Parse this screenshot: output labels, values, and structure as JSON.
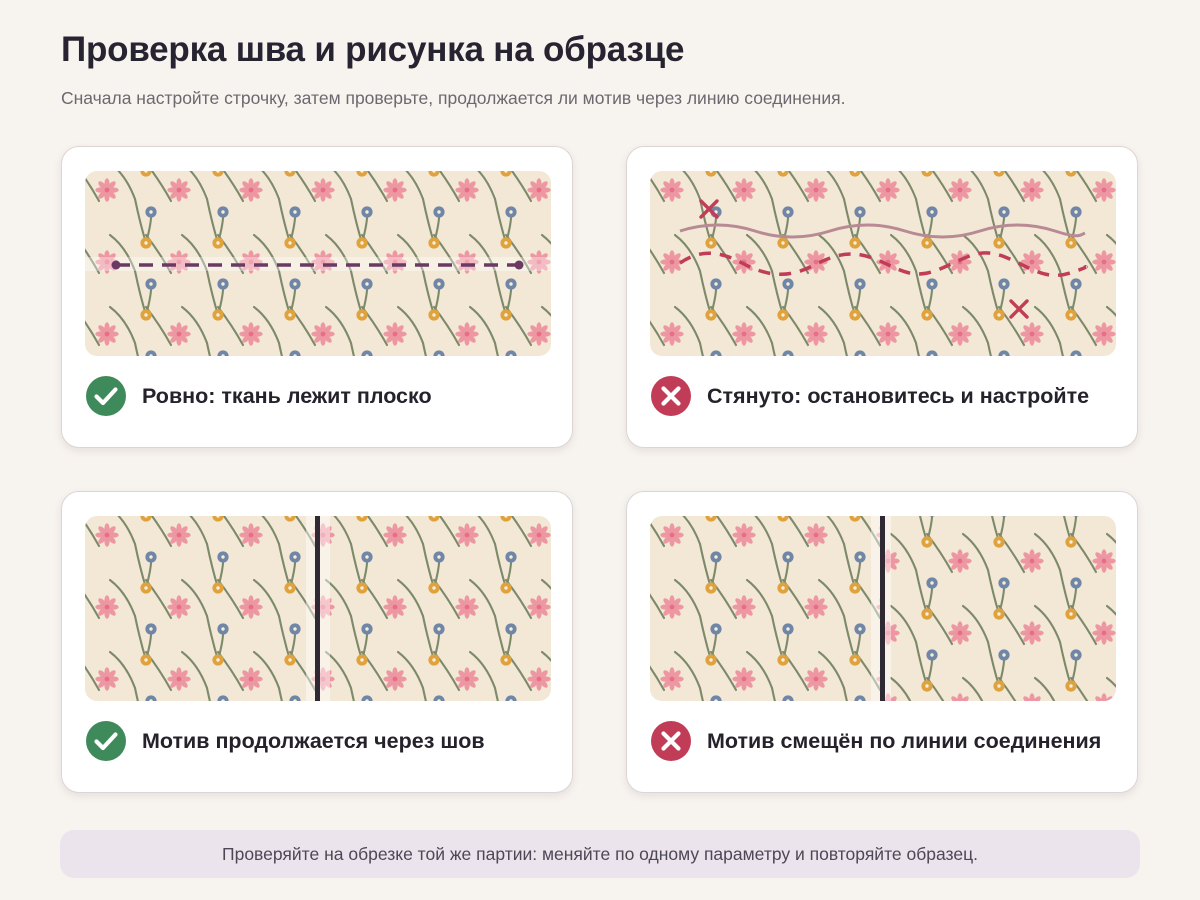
{
  "header": {
    "title": "Проверка шва и рисунка на образце",
    "subtitle": "Сначала настройте строчку, затем проверьте, продолжается ли мотив через линию соединения."
  },
  "cards": [
    {
      "id": "flat",
      "status": "ok",
      "label": "Ровно: ткань лежит плоско"
    },
    {
      "id": "puckered",
      "status": "bad",
      "label": "Стянуто: остановитесь и настройте"
    },
    {
      "id": "matched",
      "status": "ok",
      "label": "Мотив продолжается через шов"
    },
    {
      "id": "shifted",
      "status": "bad",
      "label": "Мотив смещён по линии соединения"
    }
  ],
  "footer": {
    "note": "Проверяйте на обрезке той же партии: меняйте по одному параметру и повторяйте образец."
  },
  "colors": {
    "fabric": "#f3e8d6",
    "flower_pink": "#ed97a3",
    "flower_center": "#e66f85",
    "blue_dot": "#6f86a7",
    "gold_dot": "#dfa23d",
    "stem": "#7d8a6a",
    "ok_green": "#3f8a5a",
    "bad_red": "#c13c56",
    "stitch_purple": "#6a3a62",
    "seam_dark": "#2f2933"
  },
  "icons": {
    "ok": "check-circle-icon",
    "bad": "x-circle-icon"
  }
}
